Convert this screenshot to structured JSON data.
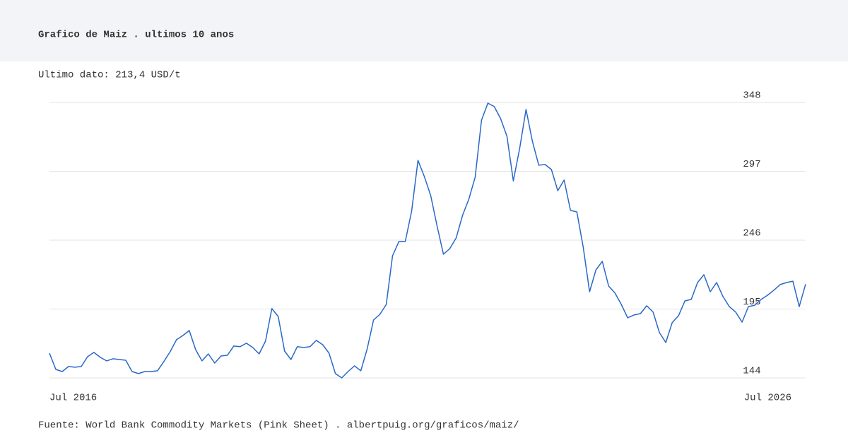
{
  "chart_data": {
    "type": "line",
    "title": "Grafico de Maiz . ultimos 10 anos",
    "subtitle": "Ultimo dato: 213,4 USD/t",
    "source": "Fuente: World Bank Commodity Markets (Pink Sheet) . albertpuig.org/graficos/maiz/",
    "categories": [
      "Jul 2016",
      null,
      null,
      null,
      null,
      null,
      null,
      null,
      null,
      null,
      null,
      null,
      null,
      null,
      null,
      null,
      null,
      null,
      null,
      null,
      null,
      null,
      null,
      null,
      null,
      null,
      null,
      null,
      null,
      null,
      null,
      null,
      null,
      null,
      null,
      null,
      null,
      null,
      null,
      null,
      null,
      null,
      null,
      null,
      null,
      null,
      null,
      null,
      null,
      null,
      null,
      null,
      null,
      null,
      null,
      null,
      null,
      null,
      null,
      null,
      null,
      null,
      null,
      null,
      null,
      null,
      null,
      null,
      null,
      null,
      null,
      null,
      null,
      null,
      null,
      null,
      null,
      null,
      null,
      null,
      null,
      null,
      null,
      null,
      null,
      null,
      null,
      null,
      null,
      null,
      null,
      null,
      null,
      null,
      null,
      null,
      null,
      null,
      null,
      null,
      null,
      null,
      null,
      null,
      null,
      null,
      null,
      null,
      null,
      null,
      null,
      null,
      null,
      null,
      null,
      null,
      null,
      null,
      null,
      "Jul 2026"
    ],
    "series": [
      {
        "name": "Maiz",
        "color": "#2a68c7",
        "values": [
          162.3,
          150.3,
          148.7,
          152.4,
          151.9,
          152.4,
          159.7,
          162.9,
          159.2,
          156.6,
          158.2,
          157.6,
          157.1,
          148.7,
          147.2,
          148.7,
          148.7,
          149.3,
          156.1,
          163.4,
          172.3,
          175.4,
          179.1,
          165.0,
          156.6,
          161.8,
          155.0,
          160.2,
          160.8,
          167.6,
          167.1,
          169.7,
          166.5,
          161.8,
          171.2,
          195.3,
          189.5,
          163.9,
          157.6,
          167.1,
          166.5,
          167.1,
          171.8,
          168.6,
          162.3,
          147.2,
          144.0,
          148.7,
          152.9,
          149.3,
          165.5,
          186.9,
          191.1,
          198.4,
          234.5,
          245.0,
          245.0,
          267.5,
          305.1,
          293.1,
          279.0,
          256.5,
          235.6,
          239.7,
          247.6,
          264.3,
          276.3,
          292.6,
          334.9,
          347.5,
          344.9,
          336.0,
          322.9,
          289.9,
          314.0,
          342.8,
          319.2,
          301.5,
          302.0,
          298.3,
          282.6,
          290.5,
          268.0,
          266.9,
          240.8,
          207.8,
          224.0,
          230.3,
          212.0,
          206.8,
          198.4,
          188.5,
          190.6,
          191.6,
          197.4,
          192.7,
          177.5,
          170.2,
          184.9,
          190.1,
          201.0,
          202.1,
          214.6,
          220.4,
          207.8,
          214.6,
          204.2,
          196.8,
          192.7,
          185.3,
          196.8,
          197.8,
          202.1,
          205.2,
          208.9,
          213.1,
          214.6,
          215.6,
          196.8,
          213.4
        ]
      }
    ],
    "ylim": [
      144,
      348
    ],
    "yticks": [
      144,
      195,
      246,
      297,
      348
    ],
    "grid": true
  }
}
